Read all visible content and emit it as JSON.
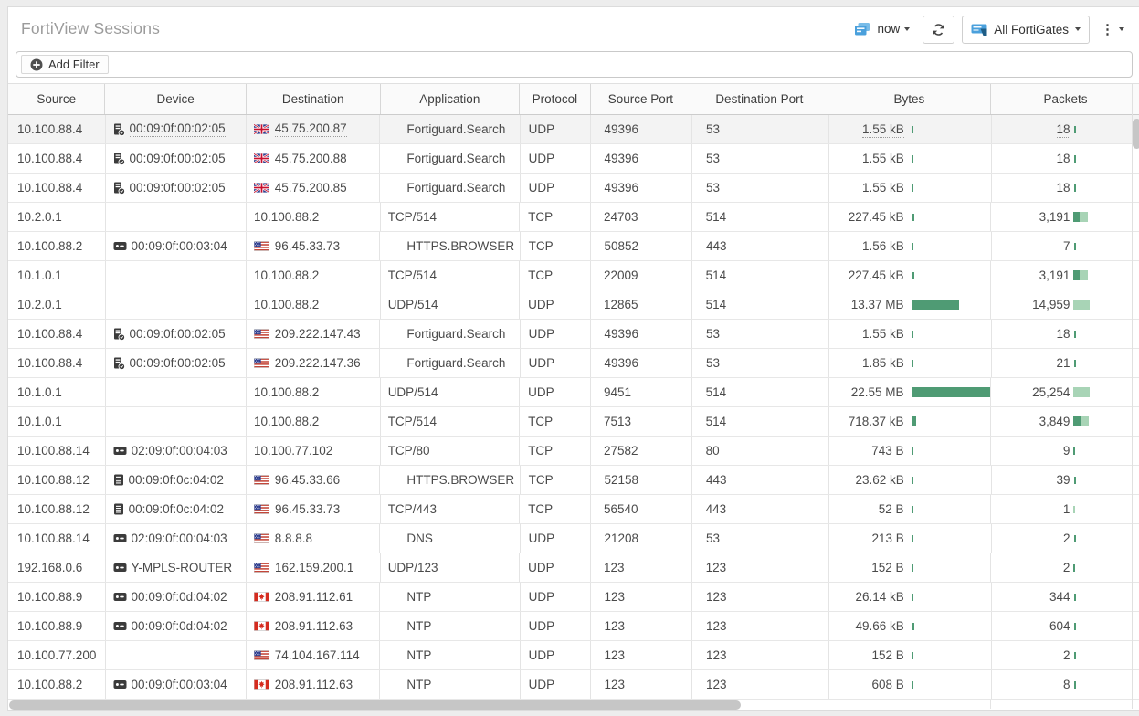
{
  "header": {
    "title": "FortiView Sessions",
    "time_label": "now",
    "device_selector_label": "All FortiGates"
  },
  "toolbar": {
    "add_filter_label": "Add Filter"
  },
  "colors": {
    "accent_blue": "#4aa0dc",
    "bar_green_dark": "#4f9b74",
    "bar_green_light": "#a8d4b6",
    "title_gray": "#9b9b9b"
  },
  "table": {
    "columns": [
      "Source",
      "Device",
      "Destination",
      "Application",
      "Protocol",
      "Source Port",
      "Destination Port",
      "Bytes",
      "Packets"
    ],
    "rows": [
      {
        "source": "10.100.88.4",
        "device_icon": "server",
        "device": "00:09:0f:00:02:05",
        "flag": "uk",
        "destination": "45.75.200.87",
        "application": "Fortiguard.Search",
        "application_recognized": true,
        "protocol": "UDP",
        "source_port": "49396",
        "destination_port": "53",
        "bytes": "1.55 kB",
        "packets": "18",
        "bytes_bar": {
          "dark": 2
        },
        "packets_bar": {
          "dark": 2,
          "light": 0
        },
        "hovered": true
      },
      {
        "source": "10.100.88.4",
        "device_icon": "server",
        "device": "00:09:0f:00:02:05",
        "flag": "uk",
        "destination": "45.75.200.88",
        "application": "Fortiguard.Search",
        "application_recognized": true,
        "protocol": "UDP",
        "source_port": "49396",
        "destination_port": "53",
        "bytes": "1.55 kB",
        "packets": "18",
        "bytes_bar": {
          "dark": 2
        },
        "packets_bar": {
          "dark": 2,
          "light": 0
        }
      },
      {
        "source": "10.100.88.4",
        "device_icon": "server",
        "device": "00:09:0f:00:02:05",
        "flag": "uk",
        "destination": "45.75.200.85",
        "application": "Fortiguard.Search",
        "application_recognized": true,
        "protocol": "UDP",
        "source_port": "49396",
        "destination_port": "53",
        "bytes": "1.55 kB",
        "packets": "18",
        "bytes_bar": {
          "dark": 2
        },
        "packets_bar": {
          "dark": 2,
          "light": 0
        }
      },
      {
        "source": "10.2.0.1",
        "device_icon": null,
        "device": "",
        "flag": null,
        "destination": "10.100.88.2",
        "application": "TCP/514",
        "application_recognized": false,
        "protocol": "TCP",
        "source_port": "24703",
        "destination_port": "514",
        "bytes": "227.45 kB",
        "packets": "3,191",
        "bytes_bar": {
          "dark": 3
        },
        "packets_bar": {
          "dark": 7,
          "light": 9
        }
      },
      {
        "source": "10.100.88.2",
        "device_icon": "device",
        "device": "00:09:0f:00:03:04",
        "flag": "us",
        "destination": "96.45.33.73",
        "application": "HTTPS.BROWSER",
        "application_recognized": true,
        "protocol": "TCP",
        "source_port": "50852",
        "destination_port": "443",
        "bytes": "1.56 kB",
        "packets": "7",
        "bytes_bar": {
          "dark": 2
        },
        "packets_bar": {
          "dark": 2,
          "light": 0
        }
      },
      {
        "source": "10.1.0.1",
        "device_icon": null,
        "device": "",
        "flag": null,
        "destination": "10.100.88.2",
        "application": "TCP/514",
        "application_recognized": false,
        "protocol": "TCP",
        "source_port": "22009",
        "destination_port": "514",
        "bytes": "227.45 kB",
        "packets": "3,191",
        "bytes_bar": {
          "dark": 3
        },
        "packets_bar": {
          "dark": 7,
          "light": 9
        }
      },
      {
        "source": "10.2.0.1",
        "device_icon": null,
        "device": "",
        "flag": null,
        "destination": "10.100.88.2",
        "application": "UDP/514",
        "application_recognized": false,
        "protocol": "UDP",
        "source_port": "12865",
        "destination_port": "514",
        "bytes": "13.37 MB",
        "packets": "14,959",
        "bytes_bar": {
          "dark": 52
        },
        "packets_bar": {
          "dark": 0,
          "light": 18
        }
      },
      {
        "source": "10.100.88.4",
        "device_icon": "server",
        "device": "00:09:0f:00:02:05",
        "flag": "us",
        "destination": "209.222.147.43",
        "application": "Fortiguard.Search",
        "application_recognized": true,
        "protocol": "UDP",
        "source_port": "49396",
        "destination_port": "53",
        "bytes": "1.55 kB",
        "packets": "18",
        "bytes_bar": {
          "dark": 2
        },
        "packets_bar": {
          "dark": 2,
          "light": 0
        }
      },
      {
        "source": "10.100.88.4",
        "device_icon": "server",
        "device": "00:09:0f:00:02:05",
        "flag": "us",
        "destination": "209.222.147.36",
        "application": "Fortiguard.Search",
        "application_recognized": true,
        "protocol": "UDP",
        "source_port": "49396",
        "destination_port": "53",
        "bytes": "1.85 kB",
        "packets": "21",
        "bytes_bar": {
          "dark": 2
        },
        "packets_bar": {
          "dark": 2,
          "light": 0
        }
      },
      {
        "source": "10.1.0.1",
        "device_icon": null,
        "device": "",
        "flag": null,
        "destination": "10.100.88.2",
        "application": "UDP/514",
        "application_recognized": false,
        "protocol": "UDP",
        "source_port": "9451",
        "destination_port": "514",
        "bytes": "22.55 MB",
        "packets": "25,254",
        "bytes_bar": {
          "dark": 87
        },
        "packets_bar": {
          "dark": 0,
          "light": 18
        }
      },
      {
        "source": "10.1.0.1",
        "device_icon": null,
        "device": "",
        "flag": null,
        "destination": "10.100.88.2",
        "application": "TCP/514",
        "application_recognized": false,
        "protocol": "TCP",
        "source_port": "7513",
        "destination_port": "514",
        "bytes": "718.37 kB",
        "packets": "3,849",
        "bytes_bar": {
          "dark": 5
        },
        "packets_bar": {
          "dark": 9,
          "light": 8
        }
      },
      {
        "source": "10.100.88.14",
        "device_icon": "device",
        "device": "02:09:0f:00:04:03",
        "flag": null,
        "destination": "10.100.77.102",
        "application": "TCP/80",
        "application_recognized": false,
        "protocol": "TCP",
        "source_port": "27582",
        "destination_port": "80",
        "bytes": "743 B",
        "packets": "9",
        "bytes_bar": {
          "dark": 2
        },
        "packets_bar": {
          "dark": 2,
          "light": 0
        }
      },
      {
        "source": "10.100.88.12",
        "device_icon": "list",
        "device": "00:09:0f:0c:04:02",
        "flag": "us",
        "destination": "96.45.33.66",
        "application": "HTTPS.BROWSER",
        "application_recognized": true,
        "protocol": "TCP",
        "source_port": "52158",
        "destination_port": "443",
        "bytes": "23.62 kB",
        "packets": "39",
        "bytes_bar": {
          "dark": 2
        },
        "packets_bar": {
          "dark": 2,
          "light": 0
        }
      },
      {
        "source": "10.100.88.12",
        "device_icon": "list",
        "device": "00:09:0f:0c:04:02",
        "flag": "us",
        "destination": "96.45.33.73",
        "application": "TCP/443",
        "application_recognized": false,
        "protocol": "TCP",
        "source_port": "56540",
        "destination_port": "443",
        "bytes": "52 B",
        "packets": "1",
        "bytes_bar": {
          "dark": 2
        },
        "packets_bar": {
          "dark": 0,
          "light": 2
        }
      },
      {
        "source": "10.100.88.14",
        "device_icon": "device",
        "device": "02:09:0f:00:04:03",
        "flag": "us",
        "destination": "8.8.8.8",
        "application": "DNS",
        "application_recognized": true,
        "protocol": "UDP",
        "source_port": "21208",
        "destination_port": "53",
        "bytes": "213 B",
        "packets": "2",
        "bytes_bar": {
          "dark": 2
        },
        "packets_bar": {
          "dark": 2,
          "light": 0
        }
      },
      {
        "source": "192.168.0.6",
        "device_icon": "device",
        "device": "Y-MPLS-ROUTER",
        "flag": "us",
        "destination": "162.159.200.1",
        "application": "UDP/123",
        "application_recognized": false,
        "protocol": "UDP",
        "source_port": "123",
        "destination_port": "123",
        "bytes": "152 B",
        "packets": "2",
        "bytes_bar": {
          "dark": 2
        },
        "packets_bar": {
          "dark": 2,
          "light": 0
        }
      },
      {
        "source": "10.100.88.9",
        "device_icon": "device",
        "device": "00:09:0f:0d:04:02",
        "flag": "ca",
        "destination": "208.91.112.61",
        "application": "NTP",
        "application_recognized": true,
        "protocol": "UDP",
        "source_port": "123",
        "destination_port": "123",
        "bytes": "26.14 kB",
        "packets": "344",
        "bytes_bar": {
          "dark": 2
        },
        "packets_bar": {
          "dark": 2,
          "light": 0
        }
      },
      {
        "source": "10.100.88.9",
        "device_icon": "device",
        "device": "00:09:0f:0d:04:02",
        "flag": "ca",
        "destination": "208.91.112.63",
        "application": "NTP",
        "application_recognized": true,
        "protocol": "UDP",
        "source_port": "123",
        "destination_port": "123",
        "bytes": "49.66 kB",
        "packets": "604",
        "bytes_bar": {
          "dark": 3
        },
        "packets_bar": {
          "dark": 2,
          "light": 0
        }
      },
      {
        "source": "10.100.77.200",
        "device_icon": null,
        "device": "",
        "flag": "us",
        "destination": "74.104.167.114",
        "application": "NTP",
        "application_recognized": true,
        "protocol": "UDP",
        "source_port": "123",
        "destination_port": "123",
        "bytes": "152 B",
        "packets": "2",
        "bytes_bar": {
          "dark": 2
        },
        "packets_bar": {
          "dark": 2,
          "light": 0
        }
      },
      {
        "source": "10.100.88.2",
        "device_icon": "device",
        "device": "00:09:0f:00:03:04",
        "flag": "ca",
        "destination": "208.91.112.63",
        "application": "NTP",
        "application_recognized": true,
        "protocol": "UDP",
        "source_port": "123",
        "destination_port": "123",
        "bytes": "608 B",
        "packets": "8",
        "bytes_bar": {
          "dark": 2
        },
        "packets_bar": {
          "dark": 2,
          "light": 0
        }
      }
    ]
  }
}
